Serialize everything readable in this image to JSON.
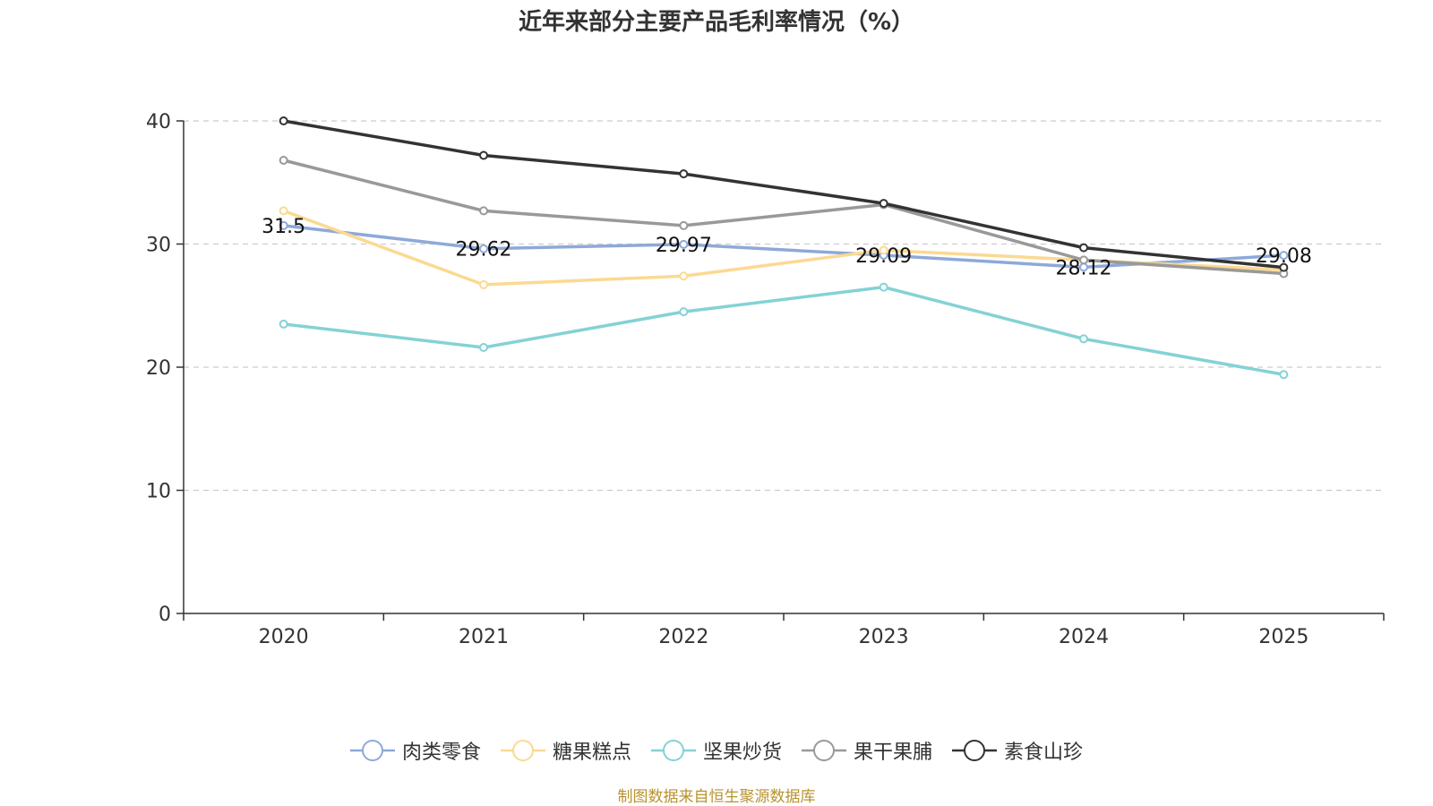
{
  "chart_data": {
    "type": "line",
    "title": "近年来部分主要产品毛利率情况（%）",
    "x": [
      "2020",
      "2021",
      "2022",
      "2023",
      "2024",
      "2025"
    ],
    "ylim": [
      0,
      40
    ],
    "yticks": [
      "0",
      "10",
      "20",
      "30",
      "40"
    ],
    "grid": true,
    "legend_position": "bottom",
    "series": [
      {
        "name": "肉类零食",
        "color": "#8ea9d9",
        "values": [
          31.5,
          29.62,
          29.97,
          29.09,
          28.12,
          29.08
        ],
        "labels": [
          "31.5",
          "29.62",
          "29.97",
          "29.09",
          "28.12",
          "29.08"
        ]
      },
      {
        "name": "糖果糕点",
        "color": "#fbd992",
        "values": [
          32.7,
          26.7,
          27.4,
          29.5,
          28.7,
          27.9
        ],
        "labels": []
      },
      {
        "name": "坚果炒货",
        "color": "#84d2d4",
        "values": [
          23.5,
          21.6,
          24.5,
          26.5,
          22.3,
          19.4
        ],
        "labels": []
      },
      {
        "name": "果干果脯",
        "color": "#999999",
        "values": [
          36.8,
          32.7,
          31.5,
          33.2,
          28.7,
          27.6
        ],
        "labels": []
      },
      {
        "name": "素食山珍",
        "color": "#333333",
        "values": [
          40.0,
          37.2,
          35.7,
          33.3,
          29.7,
          28.1
        ],
        "labels": []
      }
    ]
  },
  "source": "制图数据来自恒生聚源数据库"
}
